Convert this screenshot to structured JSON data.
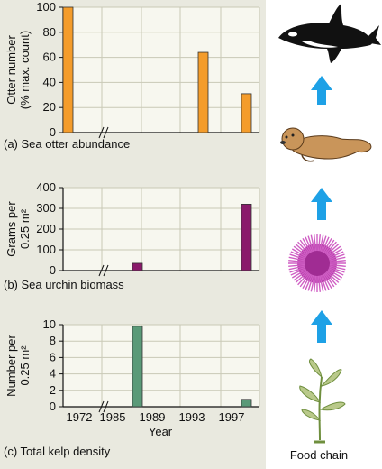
{
  "x_axis": {
    "label": "Year",
    "ticks": [
      "1972",
      "1985",
      "1989",
      "1993",
      "1997"
    ]
  },
  "chart_data": [
    {
      "type": "bar",
      "title": "(a) Sea otter abundance",
      "ylabel": [
        "Otter number",
        "(% max. count)"
      ],
      "ylim": [
        0,
        100
      ],
      "yticks": [
        0,
        20,
        40,
        60,
        80,
        100
      ],
      "color": "#f49c2b",
      "points": [
        {
          "x": 1972,
          "value": 100
        },
        {
          "x": 1993,
          "value": 64
        },
        {
          "x": 1997,
          "value": 31
        }
      ]
    },
    {
      "type": "bar",
      "title": "(b) Sea urchin biomass",
      "ylabel": [
        "Grams per",
        "0.25 m²"
      ],
      "ylim": [
        0,
        400
      ],
      "yticks": [
        0,
        100,
        200,
        300,
        400
      ],
      "color": "#8a1a6b",
      "points": [
        {
          "x": 1987,
          "value": 35
        },
        {
          "x": 1997,
          "value": 320
        }
      ]
    },
    {
      "type": "bar",
      "title": "(c) Total kelp density",
      "ylabel": [
        "Number per",
        "0.25 m²"
      ],
      "ylim": [
        0,
        10
      ],
      "yticks": [
        0,
        2,
        4,
        6,
        8,
        10
      ],
      "color": "#5a9a78",
      "points": [
        {
          "x": 1987,
          "value": 9.8
        },
        {
          "x": 1997,
          "value": 0.9
        }
      ]
    }
  ],
  "food_chain": {
    "label": "Food chain",
    "organisms": [
      "orca-icon",
      "sea-otter-icon",
      "sea-urchin-icon",
      "kelp-icon"
    ],
    "arrow_color": "#1ea1e6"
  }
}
